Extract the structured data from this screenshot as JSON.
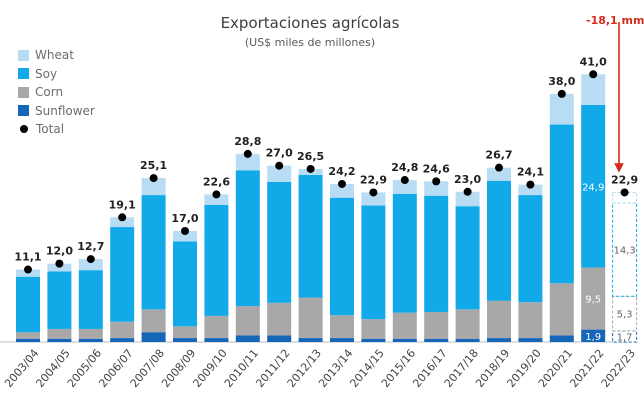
{
  "chart_data": {
    "type": "bar",
    "stacked": true,
    "title": "Exportaciones agrícolas",
    "subtitle": "(US$ miles de millones)",
    "categories": [
      "2003/04",
      "2004/05",
      "2005/06",
      "2006/07",
      "2007/08",
      "2008/09",
      "2009/10",
      "2010/11",
      "2011/12",
      "2012/13",
      "2013/14",
      "2014/15",
      "2015/16",
      "2016/17",
      "2017/18",
      "2018/19",
      "2019/20",
      "2020/21",
      "2021/22",
      "2022/23"
    ],
    "series": [
      {
        "name": "Sunflower",
        "color": "#1565b8",
        "values": [
          0.5,
          0.5,
          0.5,
          0.6,
          1.5,
          0.6,
          0.6,
          1.0,
          1.0,
          0.6,
          0.6,
          0.5,
          0.5,
          0.5,
          0.5,
          0.6,
          0.6,
          1.0,
          1.9,
          1.7
        ]
      },
      {
        "name": "Corn",
        "color": "#a8a8a8",
        "values": [
          1.0,
          1.5,
          1.5,
          2.5,
          3.5,
          1.8,
          3.4,
          4.5,
          5.0,
          6.2,
          3.5,
          3.0,
          4.0,
          4.1,
          4.5,
          5.7,
          5.5,
          8.0,
          9.5,
          5.3
        ]
      },
      {
        "name": "Soy",
        "color": "#12a9e8",
        "values": [
          8.5,
          8.8,
          9.0,
          14.5,
          17.5,
          13.0,
          17.0,
          20.8,
          18.5,
          18.8,
          18.0,
          17.4,
          18.2,
          17.8,
          15.8,
          18.4,
          16.4,
          24.3,
          24.9,
          14.3
        ]
      },
      {
        "name": "Wheat",
        "color": "#b9dcf5",
        "values": [
          1.1,
          1.2,
          1.7,
          1.5,
          2.6,
          1.6,
          1.6,
          2.5,
          2.5,
          0.9,
          2.1,
          2.0,
          2.1,
          2.2,
          2.2,
          2.0,
          1.6,
          4.7,
          4.7,
          1.6
        ]
      }
    ],
    "totals": [
      11.1,
      12.0,
      12.7,
      19.1,
      25.1,
      17.0,
      22.6,
      28.8,
      27.0,
      26.5,
      24.2,
      22.9,
      24.8,
      24.6,
      23.0,
      26.7,
      24.1,
      38.0,
      41.0,
      22.9
    ],
    "total_labels": [
      "11,1",
      "12,0",
      "12,7",
      "19,1",
      "25,1",
      "17,0",
      "22,6",
      "28,8",
      "27,0",
      "26,5",
      "24,2",
      "22,9",
      "24,8",
      "24,6",
      "23,0",
      "26,7",
      "24,1",
      "38,0",
      "41,0",
      "22,9"
    ],
    "segment_labels": [
      {
        "category_index": 18,
        "series": "Sunflower",
        "text": "1,9"
      },
      {
        "category_index": 18,
        "series": "Corn",
        "text": "9,5"
      },
      {
        "category_index": 18,
        "series": "Soy",
        "text": "24,9"
      },
      {
        "category_index": 19,
        "series": "Sunflower",
        "text": "1,7"
      },
      {
        "category_index": 19,
        "series": "Corn",
        "text": "5,3"
      },
      {
        "category_index": 19,
        "series": "Soy",
        "text": "14,3"
      }
    ],
    "projected_index": 19,
    "annotation": "-18,1 mm",
    "legend": [
      "Wheat",
      "Soy",
      "Corn",
      "Sunflower",
      "Total"
    ],
    "legend_position": "top-left",
    "ylim": [
      0,
      45
    ]
  }
}
